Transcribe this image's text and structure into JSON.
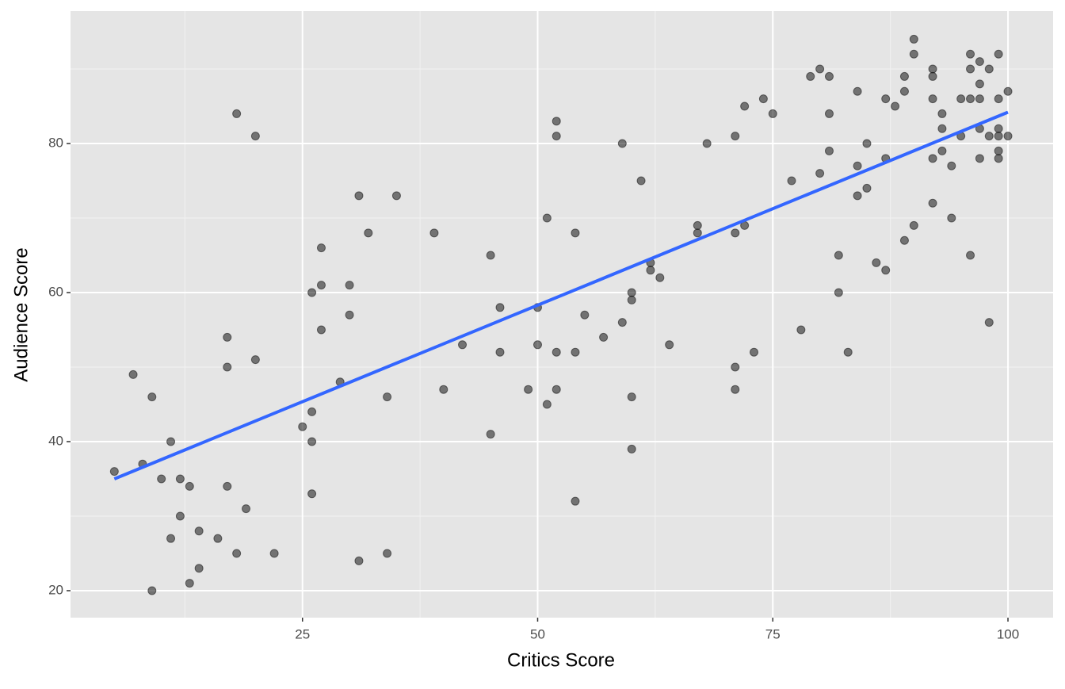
{
  "chart_data": {
    "type": "scatter",
    "xlabel": "Critics Score",
    "ylabel": "Audience Score",
    "xlim": [
      0.34,
      104.8
    ],
    "ylim": [
      16.38,
      97.77
    ],
    "xticks": [
      25,
      50,
      75,
      100
    ],
    "yticks": [
      20,
      40,
      60,
      80
    ],
    "xminor": [
      12.5,
      37.5,
      62.5,
      87.5
    ],
    "yminor": [
      30,
      50,
      70,
      90
    ],
    "grid": true,
    "point_color": "#000000",
    "point_opacity": 0.5,
    "points": {
      "x": [
        5,
        7,
        8,
        9,
        9,
        10,
        11,
        11,
        12,
        12,
        13,
        13,
        14,
        14,
        16,
        17,
        17,
        17,
        18,
        18,
        19,
        20,
        20,
        22,
        25,
        26,
        26,
        26,
        26,
        27,
        27,
        27,
        29,
        30,
        30,
        31,
        31,
        32,
        34,
        34,
        35,
        39,
        40,
        42,
        45,
        45,
        46,
        46,
        49,
        50,
        50,
        51,
        51,
        52,
        52,
        52,
        52,
        54,
        54,
        54,
        55,
        57,
        59,
        59,
        60,
        60,
        60,
        60,
        61,
        62,
        62,
        63,
        64,
        67,
        67,
        68,
        71,
        71,
        71,
        71,
        72,
        72,
        73,
        74,
        75,
        77,
        78,
        79,
        80,
        80,
        81,
        81,
        81,
        82,
        82,
        83,
        84,
        84,
        84,
        85,
        85,
        86,
        87,
        87,
        87,
        88,
        89,
        89,
        89,
        90,
        90,
        90,
        92,
        92,
        92,
        92,
        92,
        93,
        93,
        93,
        94,
        94,
        95,
        95,
        96,
        96,
        96,
        96,
        97,
        97,
        97,
        97,
        97,
        98,
        98,
        98,
        99,
        99,
        99,
        99,
        99,
        99,
        100,
        100
      ],
      "y": [
        36,
        49,
        37,
        46,
        20,
        35,
        40,
        27,
        35,
        30,
        34,
        21,
        28,
        23,
        27,
        54,
        50,
        34,
        84,
        25,
        31,
        81,
        51,
        25,
        42,
        60,
        44,
        40,
        33,
        66,
        61,
        55,
        48,
        61,
        57,
        73,
        24,
        68,
        46,
        25,
        73,
        68,
        47,
        53,
        65,
        41,
        58,
        52,
        47,
        58,
        53,
        70,
        45,
        83,
        81,
        52,
        47,
        68,
        52,
        32,
        57,
        54,
        80,
        56,
        60,
        59,
        46,
        39,
        75,
        64,
        63,
        62,
        53,
        69,
        68,
        80,
        81,
        68,
        50,
        47,
        85,
        69,
        52,
        86,
        84,
        75,
        55,
        89,
        90,
        76,
        89,
        84,
        79,
        65,
        60,
        52,
        87,
        77,
        73,
        80,
        74,
        64,
        86,
        78,
        63,
        85,
        89,
        87,
        67,
        94,
        92,
        69,
        90,
        89,
        86,
        78,
        72,
        84,
        82,
        79,
        77,
        70,
        86,
        81,
        92,
        90,
        86,
        65,
        91,
        88,
        86,
        82,
        78,
        90,
        81,
        56,
        92,
        86,
        82,
        81,
        79,
        78,
        87,
        81
      ]
    },
    "trend": {
      "x": [
        5,
        100
      ],
      "y": [
        35,
        84.2
      ],
      "color": "#3366ff"
    }
  }
}
